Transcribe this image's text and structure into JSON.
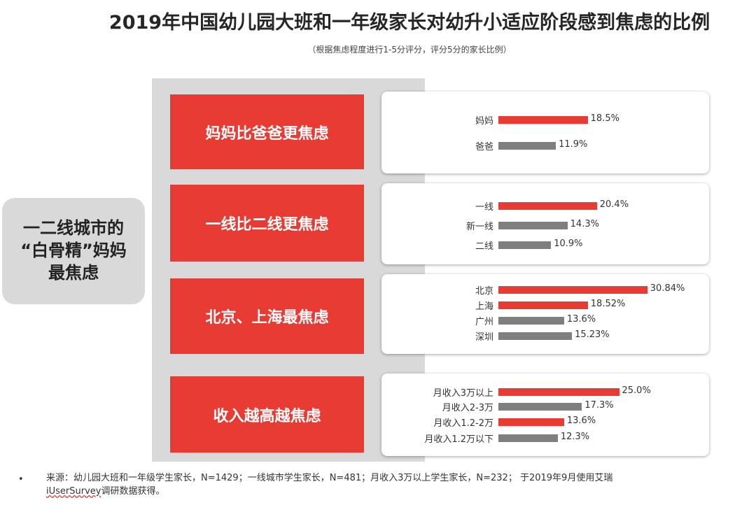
{
  "title": "2019年中国幼儿园大班和一年级家长对幼升小适应阶段感到焦虑的比例",
  "subtitle": "（根据焦虑程度进行1-5分评分，评分5分的家长比例）",
  "left_summary": "一二线城市的\n“白骨精”妈妈\n最焦虑",
  "colors": {
    "red": "#e83b33",
    "gray": "#7f7f7f"
  },
  "chart_data": [
    {
      "type": "bar",
      "orientation": "horizontal",
      "group_label": "妈妈比爸爸更焦虑",
      "categories": [
        "妈妈",
        "爸爸"
      ],
      "values": [
        18.5,
        11.9
      ],
      "value_labels": [
        "18.5%",
        "11.9%"
      ],
      "bar_colors": [
        "red",
        "gray"
      ],
      "xlim": [
        0,
        31
      ]
    },
    {
      "type": "bar",
      "orientation": "horizontal",
      "group_label": "一线比二线更焦虑",
      "categories": [
        "一线",
        "新一线",
        "二线"
      ],
      "values": [
        20.4,
        14.3,
        10.9
      ],
      "value_labels": [
        "20.4%",
        "14.3%",
        "10.9%"
      ],
      "bar_colors": [
        "red",
        "gray",
        "gray"
      ],
      "xlim": [
        0,
        31
      ]
    },
    {
      "type": "bar",
      "orientation": "horizontal",
      "group_label": "北京、上海最焦虑",
      "categories": [
        "北京",
        "上海",
        "广州",
        "深圳"
      ],
      "values": [
        30.84,
        18.52,
        13.6,
        15.23
      ],
      "value_labels": [
        "30.84%",
        "18.52%",
        "13.6%",
        "15.23%"
      ],
      "bar_colors": [
        "red",
        "red",
        "gray",
        "gray"
      ],
      "xlim": [
        0,
        31
      ]
    },
    {
      "type": "bar",
      "orientation": "horizontal",
      "group_label": "收入越高越焦虑",
      "categories": [
        "月收入3万以上",
        "月收入2-3万",
        "月收入1.2-2万",
        "月收入1.2万以下"
      ],
      "values": [
        25.0,
        17.3,
        13.6,
        12.3
      ],
      "value_labels": [
        "25.0%",
        "17.3%",
        "13.6%",
        "12.3%"
      ],
      "bar_colors": [
        "red",
        "gray",
        "red",
        "gray"
      ],
      "xlim": [
        0,
        31
      ]
    }
  ],
  "footer": {
    "bullet": "•",
    "text_line1": "来源：幼儿园大班和一年级学生家长，N=1429；一线城市学生家长，N=481；月收入3万以上学生家长，N=232； 于2019年9月使用艾瑞",
    "text_line2_brand": "iUserSurvey",
    "text_line2_rest": "调研数据获得。"
  }
}
